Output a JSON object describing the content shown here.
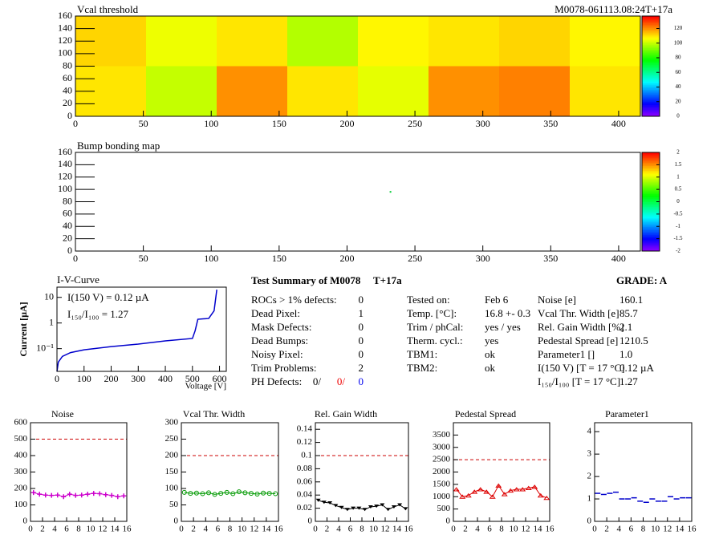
{
  "chart_data": [
    {
      "type": "heatmap",
      "title": "Vcal threshold",
      "subtitle": "M0078-061113.08:24T+17a",
      "x_edges": [
        0,
        52,
        104,
        156,
        208,
        260,
        312,
        364,
        416
      ],
      "y_edges": [
        0,
        80,
        160
      ],
      "values": [
        [
          110,
          100,
          120,
          110,
          104,
          120,
          122,
          110
        ],
        [
          112,
          105,
          110,
          98,
          108,
          110,
          112,
          108
        ]
      ],
      "xlim": [
        0,
        416
      ],
      "xticks": [
        0,
        50,
        100,
        150,
        200,
        250,
        300,
        350,
        400
      ],
      "ylim": [
        0,
        160
      ],
      "yticks": [
        0,
        20,
        40,
        60,
        80,
        100,
        120,
        140,
        160
      ],
      "zlim": [
        0,
        137
      ],
      "zticks": [
        0,
        20,
        40,
        60,
        80,
        100,
        120
      ]
    },
    {
      "type": "scatter",
      "title": "Bump bonding map",
      "x": [
        232
      ],
      "y": [
        96
      ],
      "color": "#00cc33",
      "xlim": [
        0,
        416
      ],
      "xticks": [
        0,
        50,
        100,
        150,
        200,
        250,
        300,
        350,
        400
      ],
      "ylim": [
        0,
        160
      ],
      "yticks": [
        0,
        20,
        40,
        60,
        80,
        100,
        120,
        140,
        160
      ],
      "zlim": [
        -2,
        2
      ],
      "zticks": [
        -2,
        -1.5,
        -1,
        -0.5,
        0,
        0.5,
        1,
        1.5,
        2
      ]
    },
    {
      "type": "line",
      "title": "I-V-Curve",
      "ylabel": "Current [µA]",
      "xlabel": "Voltage [V]",
      "log_y": true,
      "color": "#0000cc",
      "markers": false,
      "x": [
        0,
        5,
        20,
        50,
        100,
        200,
        300,
        400,
        500,
        510,
        520,
        560,
        580,
        590
      ],
      "values": [
        0.013,
        0.03,
        0.05,
        0.07,
        0.09,
        0.12,
        0.15,
        0.2,
        0.25,
        0.5,
        1.4,
        1.5,
        3,
        20
      ],
      "xlim": [
        0,
        625
      ],
      "xticks": [
        0,
        100,
        200,
        300,
        400,
        500,
        600
      ],
      "ylim": [
        0.013,
        25
      ],
      "yticks": [
        {
          "value": 0.1,
          "label": "10⁻¹"
        },
        1,
        10
      ],
      "annotations": [
        "I(150 V) = 0.12 µA",
        "I₁₅₀/I₁₀₀ =  1.27"
      ]
    },
    {
      "type": "line",
      "title": "Noise",
      "color": "#cc00cc",
      "markers": true,
      "threshold": 500,
      "x": [
        0.5,
        1.5,
        2.5,
        3.5,
        4.5,
        5.5,
        6.5,
        7.5,
        8.5,
        9.5,
        10.5,
        11.5,
        12.5,
        13.5,
        14.5,
        15.5
      ],
      "values": [
        175,
        165,
        160,
        158,
        160,
        150,
        165,
        158,
        160,
        165,
        170,
        168,
        162,
        158,
        150,
        155
      ],
      "xlim": [
        0,
        16
      ],
      "xticks": [
        0,
        2,
        4,
        6,
        8,
        10,
        12,
        14,
        16
      ],
      "ylim": [
        0,
        600
      ],
      "yticks": [
        0,
        100,
        200,
        300,
        400,
        500,
        600
      ]
    },
    {
      "type": "line",
      "title": "Vcal Thr. Width",
      "color": "#009900",
      "markers": true,
      "threshold": 200,
      "x": [
        0.5,
        1.5,
        2.5,
        3.5,
        4.5,
        5.5,
        6.5,
        7.5,
        8.5,
        9.5,
        10.5,
        11.5,
        12.5,
        13.5,
        14.5,
        15.5
      ],
      "values": [
        88,
        85,
        86,
        84,
        87,
        82,
        85,
        88,
        84,
        90,
        87,
        85,
        83,
        86,
        85,
        84
      ],
      "xlim": [
        0,
        16
      ],
      "xticks": [
        0,
        2,
        4,
        6,
        8,
        10,
        12,
        14,
        16
      ],
      "ylim": [
        0,
        300
      ],
      "yticks": [
        0,
        50,
        100,
        150,
        200,
        250,
        300
      ]
    },
    {
      "type": "line",
      "title": "Rel. Gain Width",
      "color": "#000000",
      "markers": true,
      "threshold": 0.1,
      "x": [
        0.5,
        1.5,
        2.5,
        3.5,
        4.5,
        5.5,
        6.5,
        7.5,
        8.5,
        9.5,
        10.5,
        11.5,
        12.5,
        13.5,
        14.5,
        15.5
      ],
      "values": [
        0.032,
        0.029,
        0.028,
        0.024,
        0.021,
        0.018,
        0.02,
        0.02,
        0.018,
        0.022,
        0.023,
        0.025,
        0.018,
        0.022,
        0.025,
        0.019
      ],
      "xlim": [
        0,
        16
      ],
      "xticks": [
        0,
        2,
        4,
        6,
        8,
        10,
        12,
        14,
        16
      ],
      "ylim": [
        0,
        0.15
      ],
      "yticks": [
        0,
        0.02,
        0.04,
        0.06,
        0.08,
        0.1,
        0.12,
        0.14
      ]
    },
    {
      "type": "line",
      "title": "Pedestal Spread",
      "color": "#dd0000",
      "markers": true,
      "threshold": 2500,
      "x": [
        0.5,
        1.5,
        2.5,
        3.5,
        4.5,
        5.5,
        6.5,
        7.5,
        8.5,
        9.5,
        10.5,
        11.5,
        12.5,
        13.5,
        14.5,
        15.5
      ],
      "values": [
        1300,
        1000,
        1050,
        1200,
        1300,
        1200,
        1000,
        1450,
        1100,
        1250,
        1300,
        1300,
        1350,
        1400,
        1050,
        950
      ],
      "xlim": [
        0,
        16
      ],
      "xticks": [
        0,
        2,
        4,
        6,
        8,
        10,
        12,
        14,
        16
      ],
      "ylim": [
        0,
        4000
      ],
      "yticks": [
        0,
        500,
        1000,
        1500,
        2000,
        2500,
        3000,
        3500
      ]
    },
    {
      "type": "line",
      "title": "Parameter1",
      "color": "#0000cc",
      "markers": false,
      "dashes": true,
      "x": [
        0.5,
        1.5,
        2.5,
        3.5,
        4.5,
        5.5,
        6.5,
        7.5,
        8.5,
        9.5,
        10.5,
        11.5,
        12.5,
        13.5,
        14.5,
        15.5
      ],
      "values": [
        1.25,
        1.2,
        1.25,
        1.3,
        1.0,
        1.0,
        1.05,
        0.9,
        0.85,
        1.0,
        0.9,
        0.9,
        1.1,
        1.0,
        1.05,
        1.05
      ],
      "xlim": [
        0,
        16
      ],
      "xticks": [
        0,
        2,
        4,
        6,
        8,
        10,
        12,
        14,
        16
      ],
      "ylim": [
        0,
        4.4
      ],
      "yticks": [
        0,
        1,
        2,
        3,
        4
      ]
    }
  ],
  "summary": {
    "title": "Test Summary of M0078",
    "tag": "T+17a",
    "grade": "GRADE:  A",
    "left": [
      [
        "ROCs > 1% defects:",
        0
      ],
      [
        "Dead Pixel:",
        1
      ],
      [
        "Mask Defects:",
        0
      ],
      [
        "Dead Bumps:",
        0
      ],
      [
        "Noisy Pixel:",
        0
      ],
      [
        "Trim Problems:",
        2
      ]
    ],
    "ph_label": "PH Defects:",
    "ph_values": [
      "0/",
      "0/",
      "0"
    ],
    "middle": [
      [
        "Tested on:",
        "Feb 6"
      ],
      [
        "Temp. [°C]:",
        "16.8 +- 0.3"
      ],
      [
        "Trim / phCal:",
        "yes / yes"
      ],
      [
        "Therm. cycl.:",
        "yes"
      ],
      [
        "TBM1:",
        "ok"
      ],
      [
        "TBM2:",
        "ok"
      ]
    ],
    "right": [
      [
        "Noise [e]",
        "160.1"
      ],
      [
        "Vcal Thr. Width [e]",
        "85.7"
      ],
      [
        "Rel. Gain Width [%]",
        "2.1"
      ],
      [
        "Pedestal Spread [e]",
        "1210.5"
      ],
      [
        "Parameter1 []",
        "1.0"
      ],
      [
        "I(150 V) [T = 17 °C]",
        "0.12 µA"
      ],
      [
        "I₁₅₀/I₁₀₀  [T = 17 °C]",
        "1.27"
      ]
    ]
  }
}
